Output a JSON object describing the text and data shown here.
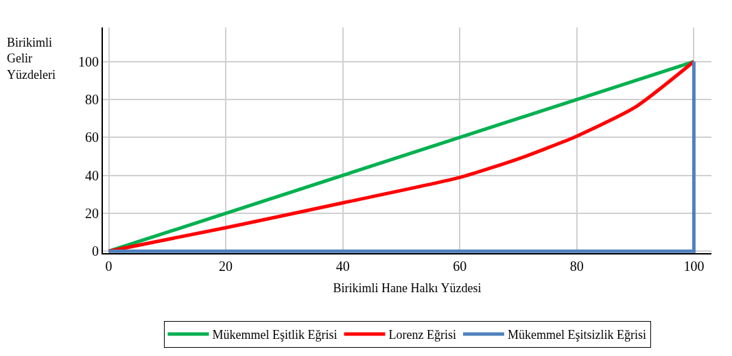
{
  "chart_data": {
    "type": "line",
    "xlabel": "Birikimli Hane Halkı Yüzdesi",
    "ylabel": "Birikimli Gelir Yüzdeleri",
    "xlim": [
      -1,
      103
    ],
    "ylim": [
      -1,
      118
    ],
    "xticks": [
      0,
      20,
      40,
      60,
      80,
      100
    ],
    "yticks": [
      0,
      20,
      40,
      60,
      80,
      100
    ],
    "grid": true,
    "legend": "bottom",
    "marker": "none",
    "line_style": "solid",
    "series": [
      {
        "name": "Mükemmel Eşitlik Eğrisi",
        "color": "#00b050",
        "x": [
          0,
          100
        ],
        "values": [
          0,
          100
        ]
      },
      {
        "name": "Lorenz Eğrisi",
        "color": "#ff0000",
        "x": [
          0,
          20,
          40,
          60,
          70,
          75,
          80,
          90,
          100
        ],
        "values": [
          0,
          12.4,
          25.5,
          38.9,
          48.7,
          54.5,
          60.7,
          76,
          100
        ]
      },
      {
        "name": "Mükemmel Eşitsizlik Eğrisi",
        "color": "#4f81bd",
        "x": [
          0,
          100,
          100
        ],
        "values": [
          0,
          0,
          100
        ]
      }
    ]
  }
}
